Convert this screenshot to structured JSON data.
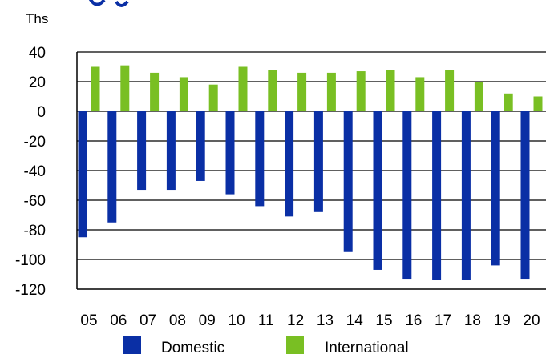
{
  "chart_data": {
    "type": "bar",
    "unit_label": "Ths",
    "categories": [
      "05",
      "06",
      "07",
      "08",
      "09",
      "10",
      "11",
      "12",
      "13",
      "14",
      "15",
      "16",
      "17",
      "18",
      "19",
      "20"
    ],
    "series": [
      {
        "name": "Domestic",
        "color": "#0a2fa5",
        "values": [
          -85,
          -75,
          -53,
          -53,
          -47,
          -56,
          -64,
          -71,
          -68,
          -95,
          -107,
          -113,
          -114,
          -114,
          -104,
          -113
        ]
      },
      {
        "name": "International",
        "color": "#79bf23",
        "values": [
          30,
          31,
          26,
          23,
          18,
          30,
          28,
          26,
          26,
          27,
          28,
          23,
          28,
          20,
          12,
          10
        ]
      }
    ],
    "ylim": [
      -120,
      40
    ],
    "yticks": [
      40,
      20,
      0,
      -20,
      -40,
      -60,
      -80,
      -100,
      -120
    ],
    "grid": true,
    "legend": "bottom"
  }
}
